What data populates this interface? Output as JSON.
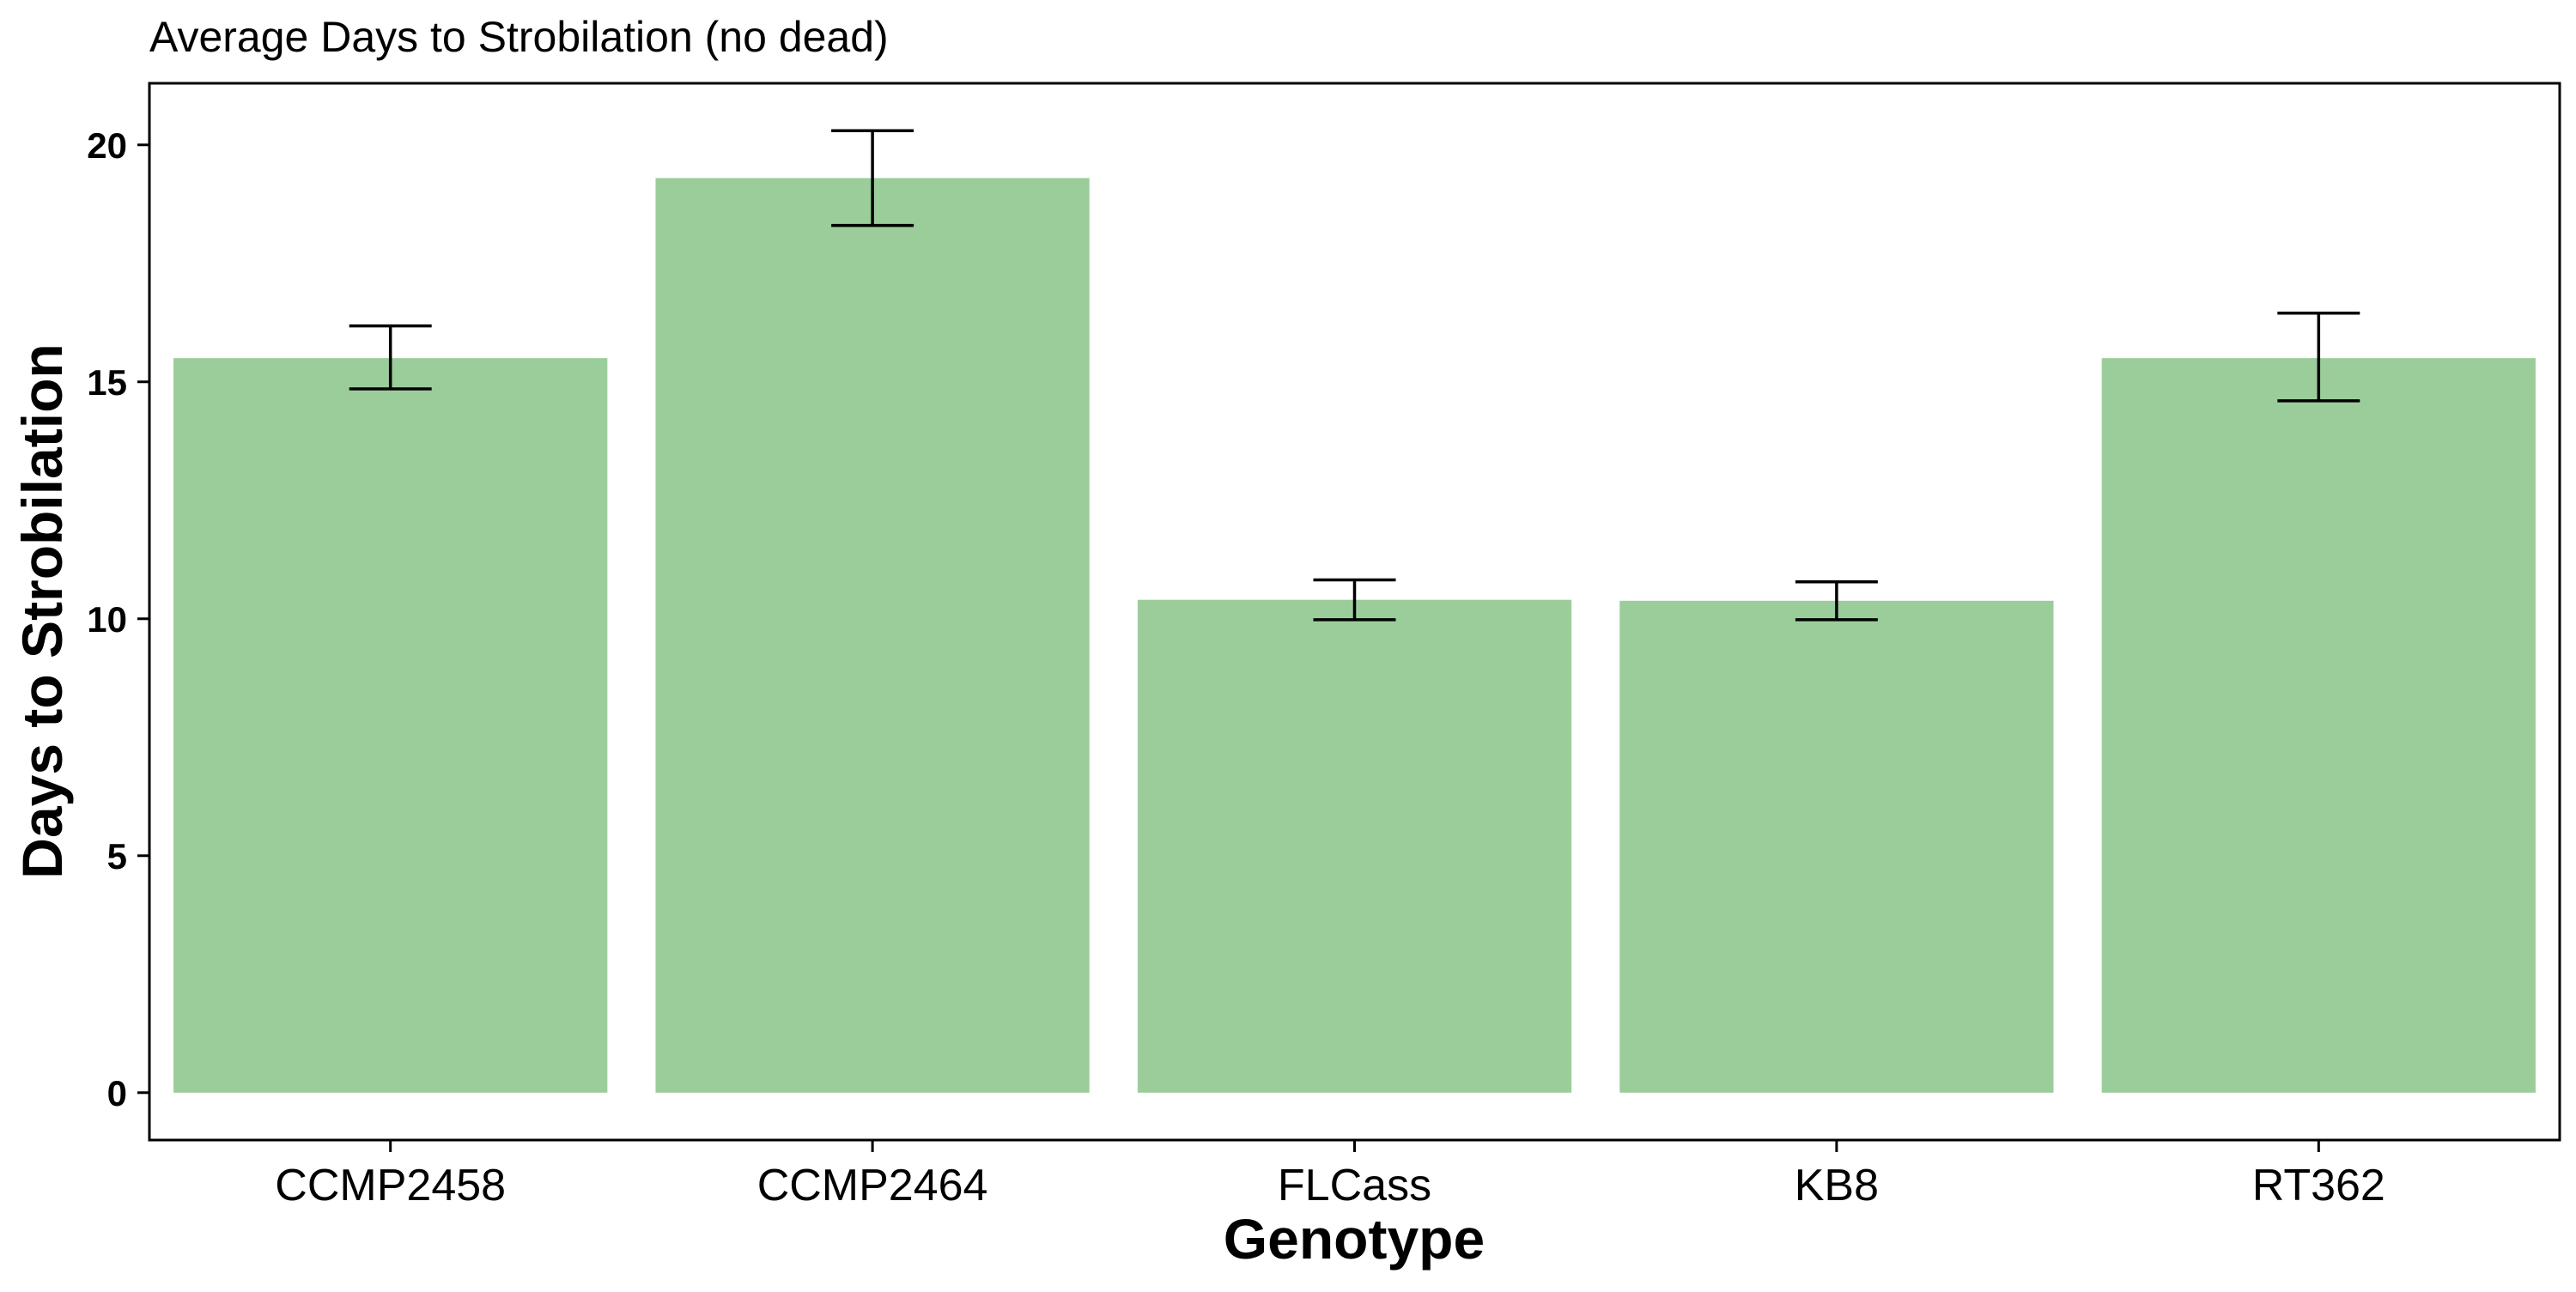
{
  "chart_data": {
    "type": "bar",
    "title": "Average Days to Strobilation (no dead)",
    "xlabel": "Genotype",
    "ylabel": "Days to Strobilation",
    "categories": [
      "CCMP2458",
      "CCMP2464",
      "FLCass",
      "KB8",
      "RT362"
    ],
    "values": [
      15.5,
      19.3,
      10.4,
      10.38,
      15.5
    ],
    "error_low": [
      14.85,
      18.3,
      9.98,
      9.98,
      14.6
    ],
    "error_high": [
      16.18,
      20.3,
      10.82,
      10.78,
      16.45
    ],
    "ylim": [
      -1.0,
      21.3
    ],
    "yticks": [
      0,
      5,
      10,
      15,
      20
    ],
    "ytick_labels": [
      "0",
      "5",
      "10",
      "15",
      "20"
    ],
    "grid": false,
    "legend": "none",
    "bar_color": "#9bcd9b",
    "error_bar_color": "#000000",
    "panel_border_color": "#000000"
  }
}
